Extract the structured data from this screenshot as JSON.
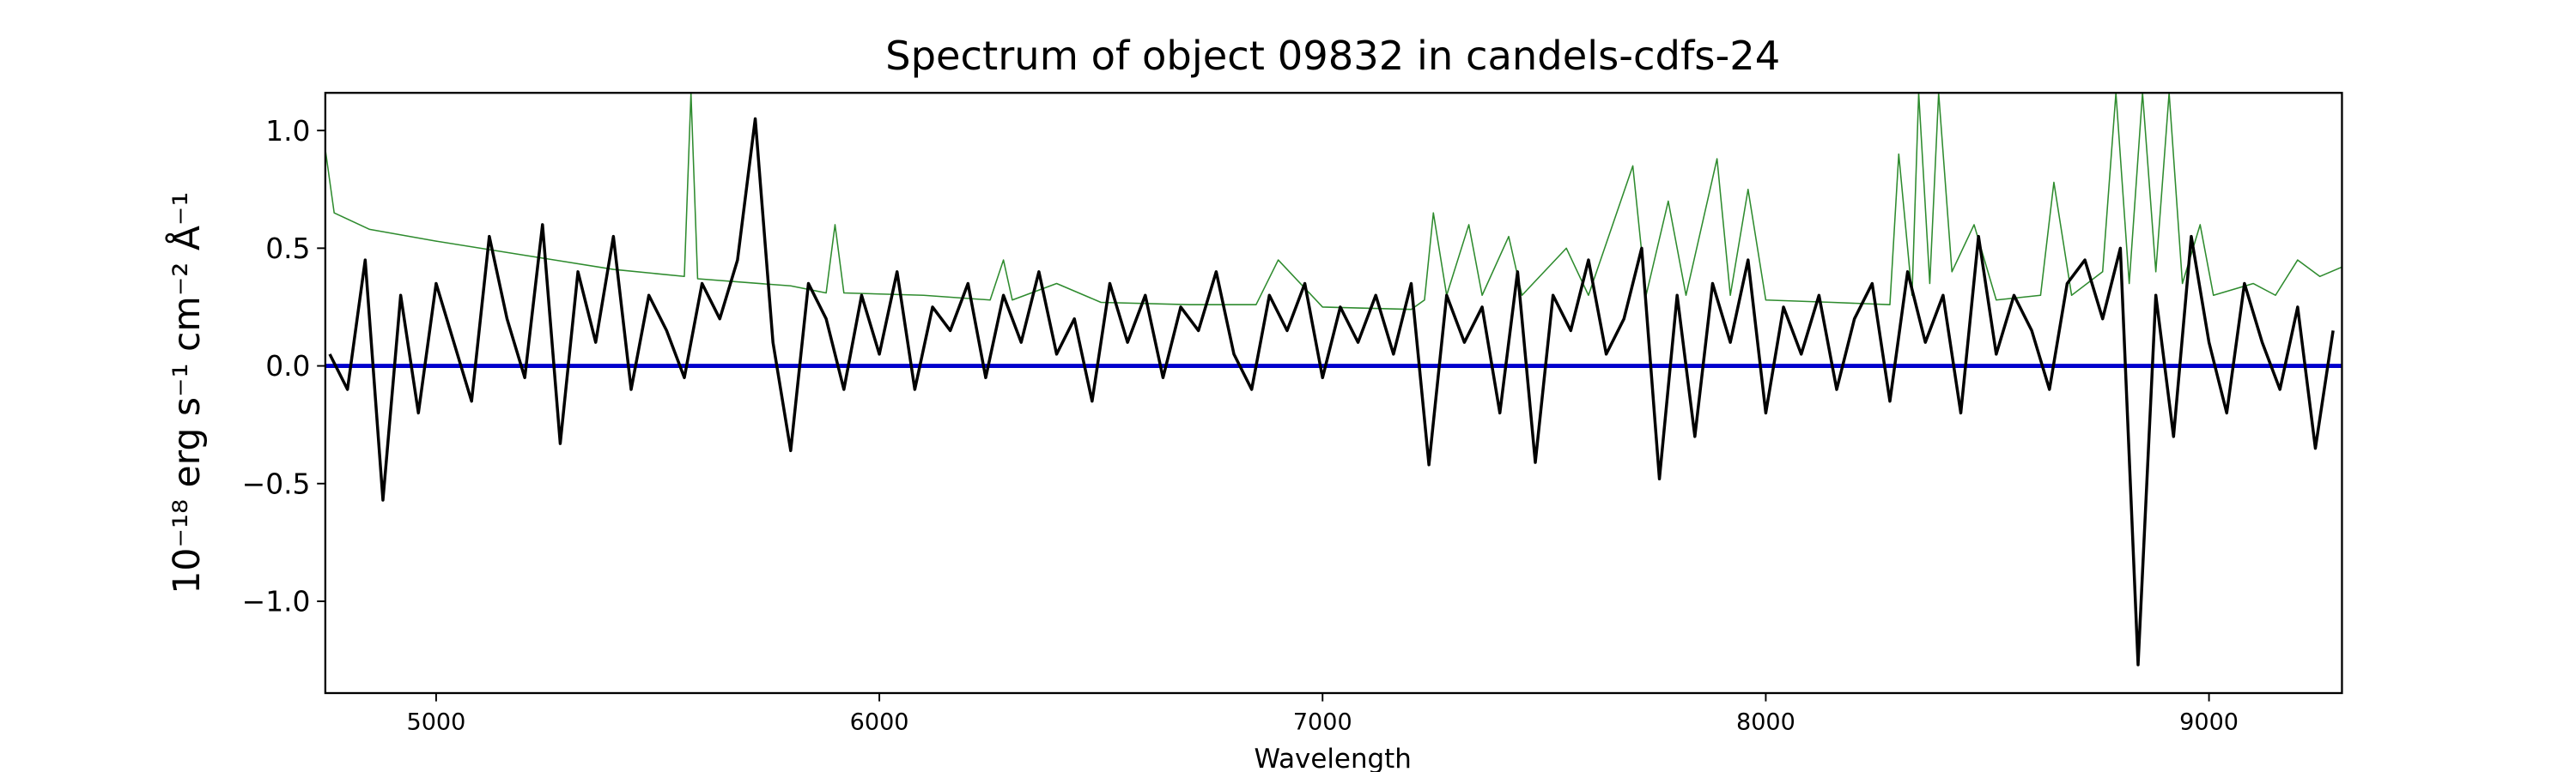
{
  "chart_data": {
    "type": "line",
    "title": "Spectrum of object 09832 in candels-cdfs-24",
    "x_label": "Wavelength",
    "y_label": "10⁻¹⁸ erg s⁻¹ cm⁻² Å⁻¹",
    "xlim": [
      4750,
      9300
    ],
    "ylim": [
      -1.39,
      1.16
    ],
    "xticks": [
      5000,
      6000,
      7000,
      8000,
      9000
    ],
    "yticks": [
      {
        "value": -1.0,
        "label": "−1.0"
      },
      {
        "value": -0.5,
        "label": "−0.5"
      },
      {
        "value": 0.0,
        "label": "0.0"
      },
      {
        "value": 0.5,
        "label": "0.5"
      },
      {
        "value": 1.0,
        "label": "1.0"
      }
    ],
    "grid": false,
    "series": [
      {
        "color": "#2e8b2e",
        "width": 0.8,
        "x": [
          4750,
          4770,
          4850,
          5000,
          5200,
          5400,
          5560,
          5575,
          5590,
          5800,
          5880,
          5900,
          5920,
          6100,
          6250,
          6280,
          6300,
          6400,
          6500,
          6700,
          6850,
          6900,
          7000,
          7200,
          7230,
          7250,
          7280,
          7330,
          7360,
          7420,
          7450,
          7550,
          7600,
          7700,
          7730,
          7780,
          7820,
          7890,
          7920,
          7960,
          8000,
          8150,
          8280,
          8300,
          8330,
          8345,
          8370,
          8390,
          8420,
          8470,
          8520,
          8620,
          8650,
          8690,
          8760,
          8790,
          8820,
          8850,
          8880,
          8910,
          8940,
          8980,
          9010,
          9100,
          9150,
          9200,
          9250,
          9300
        ],
        "values": [
          0.92,
          0.65,
          0.58,
          0.53,
          0.47,
          0.41,
          0.38,
          1.16,
          0.37,
          0.34,
          0.31,
          0.6,
          0.31,
          0.3,
          0.28,
          0.45,
          0.28,
          0.35,
          0.27,
          0.26,
          0.26,
          0.45,
          0.25,
          0.24,
          0.28,
          0.65,
          0.3,
          0.6,
          0.3,
          0.55,
          0.3,
          0.5,
          0.3,
          0.85,
          0.3,
          0.7,
          0.3,
          0.88,
          0.3,
          0.75,
          0.28,
          0.27,
          0.26,
          0.9,
          0.3,
          1.16,
          0.35,
          1.16,
          0.4,
          0.6,
          0.28,
          0.3,
          0.78,
          0.3,
          0.4,
          1.16,
          0.35,
          1.16,
          0.4,
          1.16,
          0.35,
          0.6,
          0.3,
          0.35,
          0.3,
          0.45,
          0.38,
          0.42
        ]
      },
      {
        "color": "#0000cc",
        "width": 2.5,
        "x": [
          4750,
          9300
        ],
        "values": [
          0.0,
          0.0
        ]
      },
      {
        "color": "#000000",
        "width": 1.8,
        "x": [
          4760,
          4800,
          4840,
          4880,
          4920,
          4960,
          5000,
          5040,
          5080,
          5120,
          5160,
          5200,
          5240,
          5280,
          5320,
          5360,
          5400,
          5440,
          5480,
          5520,
          5560,
          5600,
          5640,
          5680,
          5720,
          5760,
          5800,
          5840,
          5880,
          5920,
          5960,
          6000,
          6040,
          6080,
          6120,
          6160,
          6200,
          6240,
          6280,
          6320,
          6360,
          6400,
          6440,
          6480,
          6520,
          6560,
          6600,
          6640,
          6680,
          6720,
          6760,
          6800,
          6840,
          6880,
          6920,
          6960,
          7000,
          7040,
          7080,
          7120,
          7160,
          7200,
          7240,
          7280,
          7320,
          7360,
          7400,
          7440,
          7480,
          7520,
          7560,
          7600,
          7640,
          7680,
          7720,
          7760,
          7800,
          7840,
          7880,
          7920,
          7960,
          8000,
          8040,
          8080,
          8120,
          8160,
          8200,
          8240,
          8280,
          8320,
          8360,
          8400,
          8440,
          8480,
          8520,
          8560,
          8600,
          8640,
          8680,
          8720,
          8760,
          8800,
          8840,
          8880,
          8920,
          8960,
          9000,
          9040,
          9080,
          9120,
          9160,
          9200,
          9240,
          9280
        ],
        "values": [
          0.05,
          -0.1,
          0.45,
          -0.57,
          0.3,
          -0.2,
          0.35,
          0.1,
          -0.15,
          0.55,
          0.2,
          -0.05,
          0.6,
          -0.33,
          0.4,
          0.1,
          0.55,
          -0.1,
          0.3,
          0.15,
          -0.05,
          0.35,
          0.2,
          0.45,
          1.05,
          0.1,
          -0.36,
          0.35,
          0.2,
          -0.1,
          0.3,
          0.05,
          0.4,
          -0.1,
          0.25,
          0.15,
          0.35,
          -0.05,
          0.3,
          0.1,
          0.4,
          0.05,
          0.2,
          -0.15,
          0.35,
          0.1,
          0.3,
          -0.05,
          0.25,
          0.15,
          0.4,
          0.05,
          -0.1,
          0.3,
          0.15,
          0.35,
          -0.05,
          0.25,
          0.1,
          0.3,
          0.05,
          0.35,
          -0.42,
          0.3,
          0.1,
          0.25,
          -0.2,
          0.4,
          -0.41,
          0.3,
          0.15,
          0.45,
          0.05,
          0.2,
          0.5,
          -0.48,
          0.3,
          -0.3,
          0.35,
          0.1,
          0.45,
          -0.2,
          0.25,
          0.05,
          0.3,
          -0.1,
          0.2,
          0.35,
          -0.15,
          0.4,
          0.1,
          0.3,
          -0.2,
          0.55,
          0.05,
          0.3,
          0.15,
          -0.1,
          0.35,
          0.45,
          0.2,
          0.5,
          -1.27,
          0.3,
          -0.3,
          0.55,
          0.1,
          -0.2,
          0.35,
          0.1,
          -0.1,
          0.25,
          -0.35,
          0.15
        ]
      }
    ]
  }
}
